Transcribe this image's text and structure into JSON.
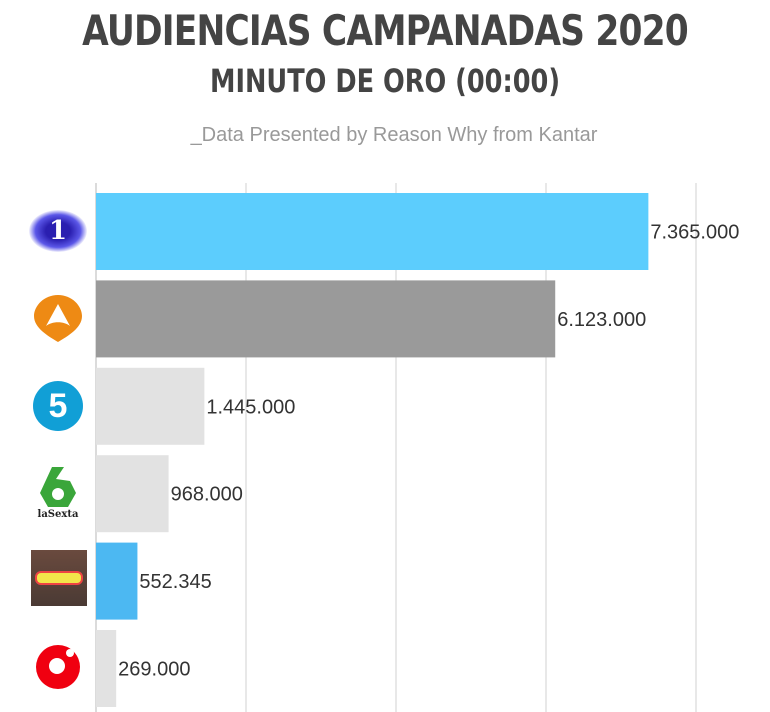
{
  "title": "AUDIENCIAS CAMPANADAS 2020",
  "subtitle": "MINUTO DE ORO (00:00)",
  "source": "_Data Presented by Reason Why from Kantar",
  "chart_data": {
    "type": "bar",
    "orientation": "horizontal",
    "title": "AUDIENCIAS CAMPANADAS 2020",
    "subtitle": "MINUTO DE ORO (00:00)",
    "categories": [
      "la1-logo",
      "antena3-logo",
      "telecinco-logo",
      "lasexta-logo",
      "streamer-photo",
      "cuatro-logo"
    ],
    "values": [
      7365000,
      6123000,
      1445000,
      968000,
      552345,
      269000
    ],
    "value_labels": [
      "7.365.000",
      "6.123.000",
      "1.445.000",
      "968.000",
      "552.345",
      "269.000"
    ],
    "colors": [
      "#5ccdfd",
      "#9a9a9a",
      "#e2e2e2",
      "#e2e2e2",
      "#4cb8f2",
      "#e2e2e2"
    ],
    "xlim": [
      0,
      8000000
    ],
    "gridlines": [
      0,
      2000000,
      4000000,
      6000000,
      8000000
    ],
    "grid": true,
    "logo_text": "laSexta"
  }
}
